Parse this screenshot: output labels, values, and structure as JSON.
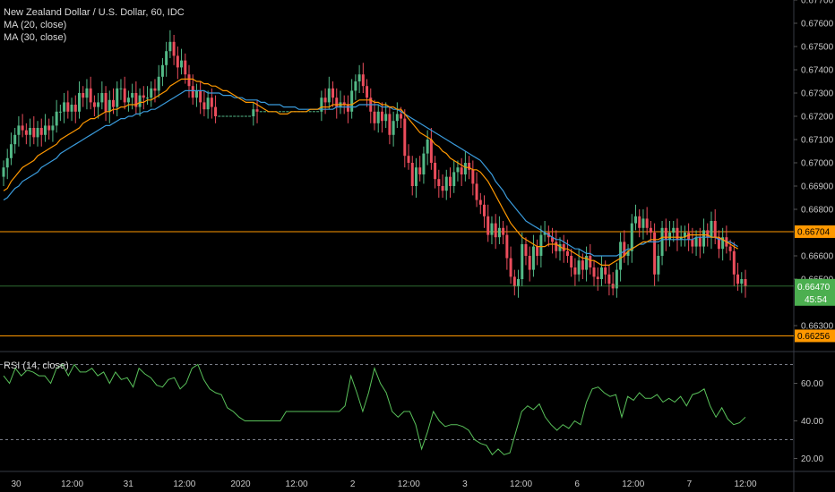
{
  "header": {
    "title": "New Zealand Dollar / U.S. Dollar, 60, IDC",
    "ma20_label": "MA (20, close)",
    "ma30_label": "MA (30, close)"
  },
  "rsi_panel": {
    "label": "RSI (14, close)"
  },
  "colors": {
    "up": "#53b987",
    "down": "#eb4d5c",
    "ma20": "#ff9800",
    "ma30": "#3a9bdc",
    "rsi": "#59c15a",
    "hline": "#ff9800",
    "last_price": "#4caf50"
  },
  "chart_data": [
    {
      "type": "candlestick",
      "title": "New Zealand Dollar / U.S. Dollar, 60, IDC",
      "ylim": [
        0.662,
        0.677
      ],
      "y_ticks": [
        "0.67700",
        "0.67600",
        "0.67500",
        "0.67400",
        "0.67300",
        "0.67200",
        "0.67100",
        "0.67000",
        "0.66900",
        "0.66800",
        "0.66600",
        "0.66500",
        "0.66300"
      ],
      "x_ticks": [
        "30",
        "12:00",
        "31",
        "12:00",
        "2020",
        "12:00",
        "2",
        "12:00",
        "3",
        "12:00",
        "6",
        "12:00",
        "7",
        "12:00"
      ],
      "horizontal_lines": [
        {
          "value": "0.66704",
          "color": "#ff9800"
        },
        {
          "value": "0.66256",
          "color": "#ff9800"
        }
      ],
      "last_price": {
        "value": "0.66470",
        "countdown": "45:54"
      },
      "series": [
        {
          "name": "MA (20, close)",
          "color": "#ff9800"
        },
        {
          "name": "MA (30, close)",
          "color": "#3a9bdc"
        }
      ],
      "close": [
        0.6698,
        0.6702,
        0.6708,
        0.6712,
        0.6716,
        0.6714,
        0.6712,
        0.6715,
        0.6711,
        0.6715,
        0.6712,
        0.6716,
        0.6714,
        0.6716,
        0.6722,
        0.6722,
        0.6726,
        0.6722,
        0.6725,
        0.6722,
        0.673,
        0.6728,
        0.6732,
        0.6726,
        0.6724,
        0.6726,
        0.673,
        0.6722,
        0.6727,
        0.6724,
        0.6732,
        0.6732,
        0.6726,
        0.6728,
        0.673,
        0.6724,
        0.6729,
        0.6728,
        0.6728,
        0.6732,
        0.6731,
        0.6737,
        0.6742,
        0.6748,
        0.6752,
        0.6746,
        0.6741,
        0.6744,
        0.6738,
        0.6733,
        0.6728,
        0.6731,
        0.6726,
        0.6723,
        0.6728,
        0.6724,
        0.672,
        0.672,
        0.672,
        0.672,
        0.672,
        0.672,
        0.672,
        0.672,
        0.672,
        0.672,
        0.6723,
        0.6722,
        0.6722,
        0.6722,
        0.6722,
        0.6722,
        0.6722,
        0.6722,
        0.6722,
        0.6722,
        0.6722,
        0.6722,
        0.6722,
        0.6722,
        0.6722,
        0.6722,
        0.6722,
        0.6722,
        0.6728,
        0.6726,
        0.6732,
        0.6728,
        0.6724,
        0.6726,
        0.6725,
        0.6722,
        0.6731,
        0.6735,
        0.6738,
        0.6733,
        0.6728,
        0.6722,
        0.6717,
        0.6722,
        0.6718,
        0.6721,
        0.6712,
        0.6718,
        0.6721,
        0.6719,
        0.6703,
        0.67,
        0.669,
        0.6698,
        0.6695,
        0.6704,
        0.671,
        0.67,
        0.6693,
        0.669,
        0.6688,
        0.6694,
        0.669,
        0.6696,
        0.6698,
        0.6695,
        0.67,
        0.6697,
        0.6691,
        0.6684,
        0.6682,
        0.6677,
        0.6669,
        0.6674,
        0.6668,
        0.6672,
        0.6669,
        0.6659,
        0.6651,
        0.6647,
        0.665,
        0.6665,
        0.666,
        0.6654,
        0.6664,
        0.666,
        0.6669,
        0.667,
        0.6668,
        0.6666,
        0.6662,
        0.6665,
        0.6662,
        0.666,
        0.6655,
        0.6652,
        0.6658,
        0.6654,
        0.666,
        0.6655,
        0.6651,
        0.665,
        0.6655,
        0.6652,
        0.6648,
        0.6646,
        0.6654,
        0.6666,
        0.666,
        0.6662,
        0.6674,
        0.6677,
        0.6672,
        0.6676,
        0.6672,
        0.667,
        0.6652,
        0.666,
        0.6672,
        0.6667,
        0.667,
        0.6672,
        0.6667,
        0.6668,
        0.667,
        0.6667,
        0.6664,
        0.6668,
        0.6664,
        0.6671,
        0.6668,
        0.6675,
        0.6668,
        0.6663,
        0.6668,
        0.6664,
        0.6662,
        0.6652,
        0.6648,
        0.665,
        0.6647
      ],
      "ma20": [
        0.6688,
        0.6689,
        0.6692,
        0.6694,
        0.6696,
        0.6698,
        0.6699,
        0.67,
        0.6701,
        0.6703,
        0.6704,
        0.6705,
        0.6706,
        0.6707,
        0.6708,
        0.671,
        0.6711,
        0.6712,
        0.6713,
        0.6714,
        0.6715,
        0.6717,
        0.6718,
        0.6719,
        0.6719,
        0.672,
        0.6721,
        0.6722,
        0.6722,
        0.6723,
        0.6723,
        0.6724,
        0.6724,
        0.6725,
        0.6725,
        0.6725,
        0.6726,
        0.6726,
        0.6727,
        0.6727,
        0.6728,
        0.6729,
        0.673,
        0.6731,
        0.6733,
        0.6734,
        0.6735,
        0.6736,
        0.6736,
        0.6736,
        0.6736,
        0.6735,
        0.6735,
        0.6734,
        0.6734,
        0.6733,
        0.6733,
        0.6732,
        0.6731,
        0.6731,
        0.673,
        0.6729,
        0.6728,
        0.6727,
        0.6726,
        0.6726,
        0.6726,
        0.6725,
        0.6724,
        0.6723,
        0.6722,
        0.6722,
        0.6722,
        0.6721,
        0.6721,
        0.6721,
        0.6722,
        0.6722,
        0.6722,
        0.6722,
        0.6722,
        0.6723,
        0.6723,
        0.6723,
        0.6724,
        0.6724,
        0.6724,
        0.6725,
        0.6725,
        0.6725,
        0.6725,
        0.6725,
        0.6725,
        0.6726,
        0.6727,
        0.6727,
        0.6727,
        0.6727,
        0.6726,
        0.6726,
        0.6725,
        0.6725,
        0.6724,
        0.6724,
        0.6723,
        0.6723,
        0.6721,
        0.6719,
        0.6717,
        0.6715,
        0.6713,
        0.6712,
        0.6711,
        0.671,
        0.6708,
        0.6707,
        0.6705,
        0.6704,
        0.6702,
        0.6701,
        0.67,
        0.6699,
        0.6698,
        0.6698,
        0.6697,
        0.6697,
        0.6696,
        0.6694,
        0.6692,
        0.6689,
        0.6686,
        0.6683,
        0.668,
        0.6677,
        0.6674,
        0.6672,
        0.667,
        0.6668,
        0.6667,
        0.6666,
        0.6665,
        0.6664,
        0.6664,
        0.6664,
        0.6665,
        0.6665,
        0.6665,
        0.6664,
        0.6663,
        0.6663,
        0.6662,
        0.6661,
        0.666,
        0.6659,
        0.6659,
        0.6658,
        0.6658,
        0.6657,
        0.6656,
        0.6656,
        0.6656,
        0.6657,
        0.6658,
        0.6659,
        0.666,
        0.6662,
        0.6663,
        0.6664,
        0.6665,
        0.6666,
        0.6666,
        0.6667,
        0.6667,
        0.6667,
        0.6668,
        0.6668,
        0.6668,
        0.6668,
        0.6668,
        0.6668,
        0.6668,
        0.6669,
        0.6669,
        0.6669,
        0.6669,
        0.6669,
        0.6669,
        0.6668,
        0.6668,
        0.6668,
        0.6667,
        0.6666,
        0.6665,
        0.6664,
        0.6663
      ],
      "ma30": [
        0.6684,
        0.6685,
        0.6687,
        0.6689,
        0.669,
        0.6692,
        0.6693,
        0.6694,
        0.6695,
        0.6696,
        0.6698,
        0.6699,
        0.67,
        0.6701,
        0.6702,
        0.6704,
        0.6705,
        0.6706,
        0.6707,
        0.6708,
        0.6709,
        0.671,
        0.6711,
        0.6712,
        0.6713,
        0.6714,
        0.6715,
        0.6716,
        0.6716,
        0.6717,
        0.6718,
        0.6719,
        0.6719,
        0.672,
        0.672,
        0.6721,
        0.6721,
        0.6722,
        0.6722,
        0.6723,
        0.6723,
        0.6724,
        0.6725,
        0.6726,
        0.6727,
        0.6728,
        0.6729,
        0.673,
        0.6731,
        0.6731,
        0.6731,
        0.6731,
        0.6731,
        0.6731,
        0.673,
        0.673,
        0.673,
        0.673,
        0.6729,
        0.6729,
        0.6729,
        0.6728,
        0.6728,
        0.6728,
        0.6727,
        0.6727,
        0.6727,
        0.6727,
        0.6726,
        0.6726,
        0.6725,
        0.6725,
        0.6725,
        0.6725,
        0.6724,
        0.6724,
        0.6724,
        0.6724,
        0.6723,
        0.6723,
        0.6723,
        0.6723,
        0.6723,
        0.6723,
        0.6723,
        0.6723,
        0.6723,
        0.6723,
        0.6724,
        0.6724,
        0.6724,
        0.6724,
        0.6724,
        0.6724,
        0.6725,
        0.6725,
        0.6725,
        0.6725,
        0.6725,
        0.6725,
        0.6724,
        0.6724,
        0.6724,
        0.6723,
        0.6723,
        0.6722,
        0.6721,
        0.672,
        0.6719,
        0.6718,
        0.6717,
        0.6716,
        0.6715,
        0.6714,
        0.6713,
        0.6712,
        0.6711,
        0.671,
        0.6709,
        0.6708,
        0.6707,
        0.6706,
        0.6705,
        0.6704,
        0.6703,
        0.6702,
        0.6701,
        0.6699,
        0.6697,
        0.6695,
        0.6692,
        0.669,
        0.6688,
        0.6685,
        0.6683,
        0.6681,
        0.6679,
        0.6677,
        0.6675,
        0.6674,
        0.6673,
        0.6672,
        0.6671,
        0.667,
        0.6669,
        0.6668,
        0.6667,
        0.6667,
        0.6666,
        0.6665,
        0.6664,
        0.6663,
        0.6663,
        0.6662,
        0.6661,
        0.6661,
        0.666,
        0.666,
        0.666,
        0.666,
        0.666,
        0.666,
        0.666,
        0.6661,
        0.6662,
        0.6663,
        0.6663,
        0.6664,
        0.6665,
        0.6665,
        0.6666,
        0.6666,
        0.6666,
        0.6666,
        0.6667,
        0.6667,
        0.6667,
        0.6667,
        0.6667,
        0.6667,
        0.6667,
        0.6667,
        0.6667,
        0.6668,
        0.6668,
        0.6668,
        0.6668,
        0.6668,
        0.6668,
        0.6667,
        0.6667,
        0.6666,
        0.6666,
        0.6665,
        0.6664
      ]
    },
    {
      "type": "line",
      "title": "RSI (14, close)",
      "ylim": [
        15,
        75
      ],
      "y_ticks": [
        "60.00",
        "40.00",
        "20.00"
      ],
      "bands": [
        70,
        30
      ],
      "series": [
        {
          "name": "RSI (14, close)",
          "color": "#59c15a",
          "values": [
            64,
            60,
            68,
            64,
            67,
            66,
            64,
            64,
            60,
            68,
            70,
            64,
            70,
            66,
            66,
            68,
            64,
            66,
            60,
            66,
            62,
            63,
            58,
            68,
            65,
            63,
            59,
            58,
            62,
            63,
            57,
            60,
            68,
            70,
            62,
            57,
            55,
            54,
            47,
            45,
            42,
            40,
            40,
            40,
            40,
            40,
            40,
            40,
            45,
            45,
            45,
            45,
            45,
            45,
            45,
            45,
            45,
            45,
            48,
            64,
            55,
            45,
            55,
            68,
            60,
            55,
            45,
            42,
            45,
            45,
            38,
            25,
            34,
            45,
            40,
            37,
            38,
            38,
            37,
            35,
            30,
            28,
            27,
            22,
            25,
            22,
            23,
            34,
            45,
            48,
            46,
            49,
            42,
            38,
            35,
            38,
            36,
            40,
            38,
            50,
            57,
            58,
            55,
            53,
            54,
            42,
            53,
            51,
            55,
            52,
            52,
            54,
            50,
            52,
            50,
            53,
            48,
            54,
            55,
            57,
            48,
            42,
            47,
            41,
            38,
            39,
            42
          ]
        }
      ]
    }
  ]
}
